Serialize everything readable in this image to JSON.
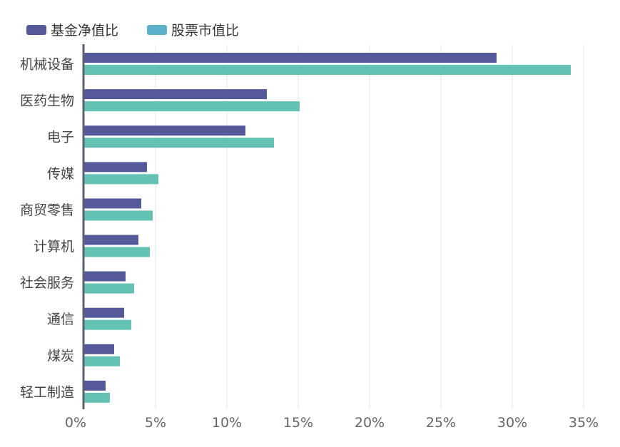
{
  "chart_data": {
    "type": "bar",
    "orientation": "horizontal",
    "categories": [
      "机械设备",
      "医药生物",
      "电子",
      "传媒",
      "商贸零售",
      "计算机",
      "社会服务",
      "通信",
      "煤炭",
      "轻工制造"
    ],
    "series": [
      {
        "name": "基金净值比",
        "color": "#545a99",
        "values": [
          28.9,
          12.8,
          11.3,
          4.4,
          4.0,
          3.8,
          2.9,
          2.8,
          2.1,
          1.5
        ]
      },
      {
        "name": "股票市值比",
        "color": "#63c2b4",
        "values": [
          34.1,
          15.1,
          13.3,
          5.2,
          4.8,
          4.6,
          3.5,
          3.3,
          2.5,
          1.8
        ]
      }
    ],
    "x_ticks": [
      "0%",
      "5%",
      "10%",
      "15%",
      "20%",
      "25%",
      "30%",
      "35%"
    ],
    "xlim": [
      0,
      35
    ],
    "legend": {
      "placement": "top-left",
      "series_1_swatch": "#545a99",
      "series_2_swatch": "#5bb1c9"
    },
    "grid": "vertical",
    "axis_color": "#5c6070"
  }
}
